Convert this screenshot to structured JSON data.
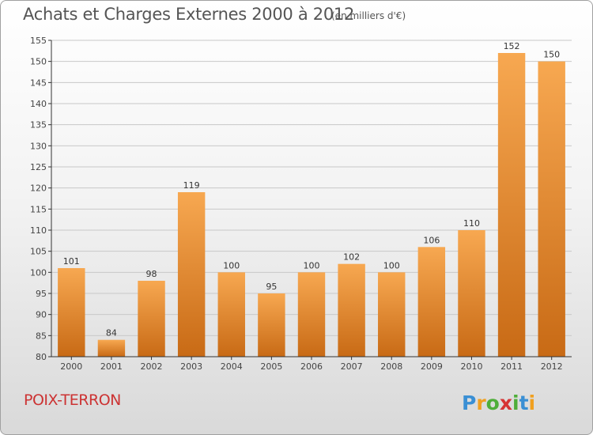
{
  "header": {
    "title": "Achats et Charges Externes 2000 à 2012",
    "subtitle": "(en milliers d'€)"
  },
  "footer": {
    "city": "POIX-TERRON",
    "brand": "Proxiti"
  },
  "colors": {
    "bar_light": "#f7a851",
    "bar_dark": "#c86a15",
    "axis": "#333333",
    "grid": "#c8c8c8",
    "city_text": "#cc3333"
  },
  "chart_data": {
    "type": "bar",
    "title": "Achats et Charges Externes 2000 à 2012",
    "subtitle": "(en milliers d'€)",
    "categories": [
      "2000",
      "2001",
      "2002",
      "2003",
      "2004",
      "2005",
      "2006",
      "2007",
      "2008",
      "2009",
      "2010",
      "2011",
      "2012"
    ],
    "values": [
      101,
      84,
      98,
      119,
      100,
      95,
      100,
      102,
      100,
      106,
      110,
      152,
      150
    ],
    "ylim": [
      80,
      155
    ],
    "yticks": [
      80,
      85,
      90,
      95,
      100,
      105,
      110,
      115,
      120,
      125,
      130,
      135,
      140,
      145,
      150,
      155
    ],
    "grid": true,
    "data_labels": true,
    "xlabel": "",
    "ylabel": ""
  }
}
